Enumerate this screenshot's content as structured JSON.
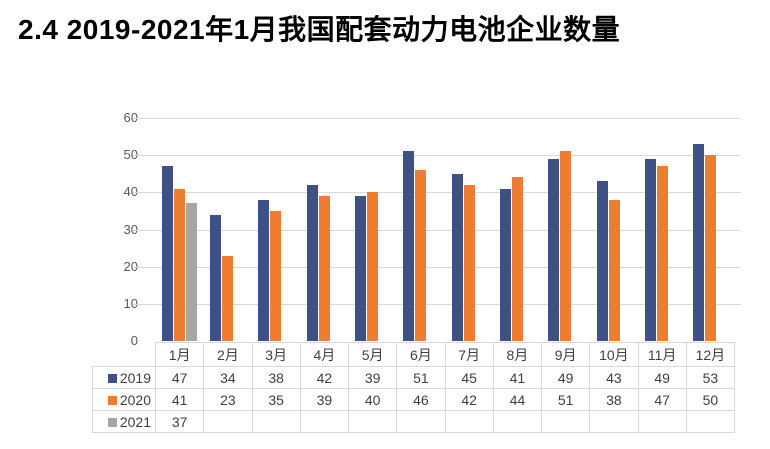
{
  "page": {
    "title": "2.4 2019-2021年1月我国配套动力电池企业数量"
  },
  "chart_data": {
    "type": "bar",
    "title": "2.4 2019-2021年1月我国配套动力电池企业数量",
    "xlabel": "",
    "ylabel": "",
    "categories": [
      "1月",
      "2月",
      "3月",
      "4月",
      "5月",
      "6月",
      "7月",
      "8月",
      "9月",
      "10月",
      "11月",
      "12月"
    ],
    "series": [
      {
        "name": "2019",
        "color": "#3e5184",
        "values": [
          47,
          34,
          38,
          42,
          39,
          51,
          45,
          41,
          49,
          43,
          49,
          53
        ]
      },
      {
        "name": "2020",
        "color": "#ed7d31",
        "values": [
          41,
          23,
          35,
          39,
          40,
          46,
          42,
          44,
          51,
          38,
          47,
          50
        ]
      },
      {
        "name": "2021",
        "color": "#a6a6a6",
        "values": [
          37,
          null,
          null,
          null,
          null,
          null,
          null,
          null,
          null,
          null,
          null,
          null
        ]
      }
    ],
    "ylim": [
      0,
      60
    ],
    "yticks": [
      0,
      10,
      20,
      30,
      40,
      50,
      60
    ],
    "grid": true,
    "legend_position": "data-table-left-keys"
  },
  "colors": {
    "background": "#ffffff",
    "title_text": "#000000",
    "axis_text": "#595959",
    "table_text": "#3f3f3f",
    "gridline": "#d9d9d9",
    "table_border": "#d9d9d9"
  }
}
